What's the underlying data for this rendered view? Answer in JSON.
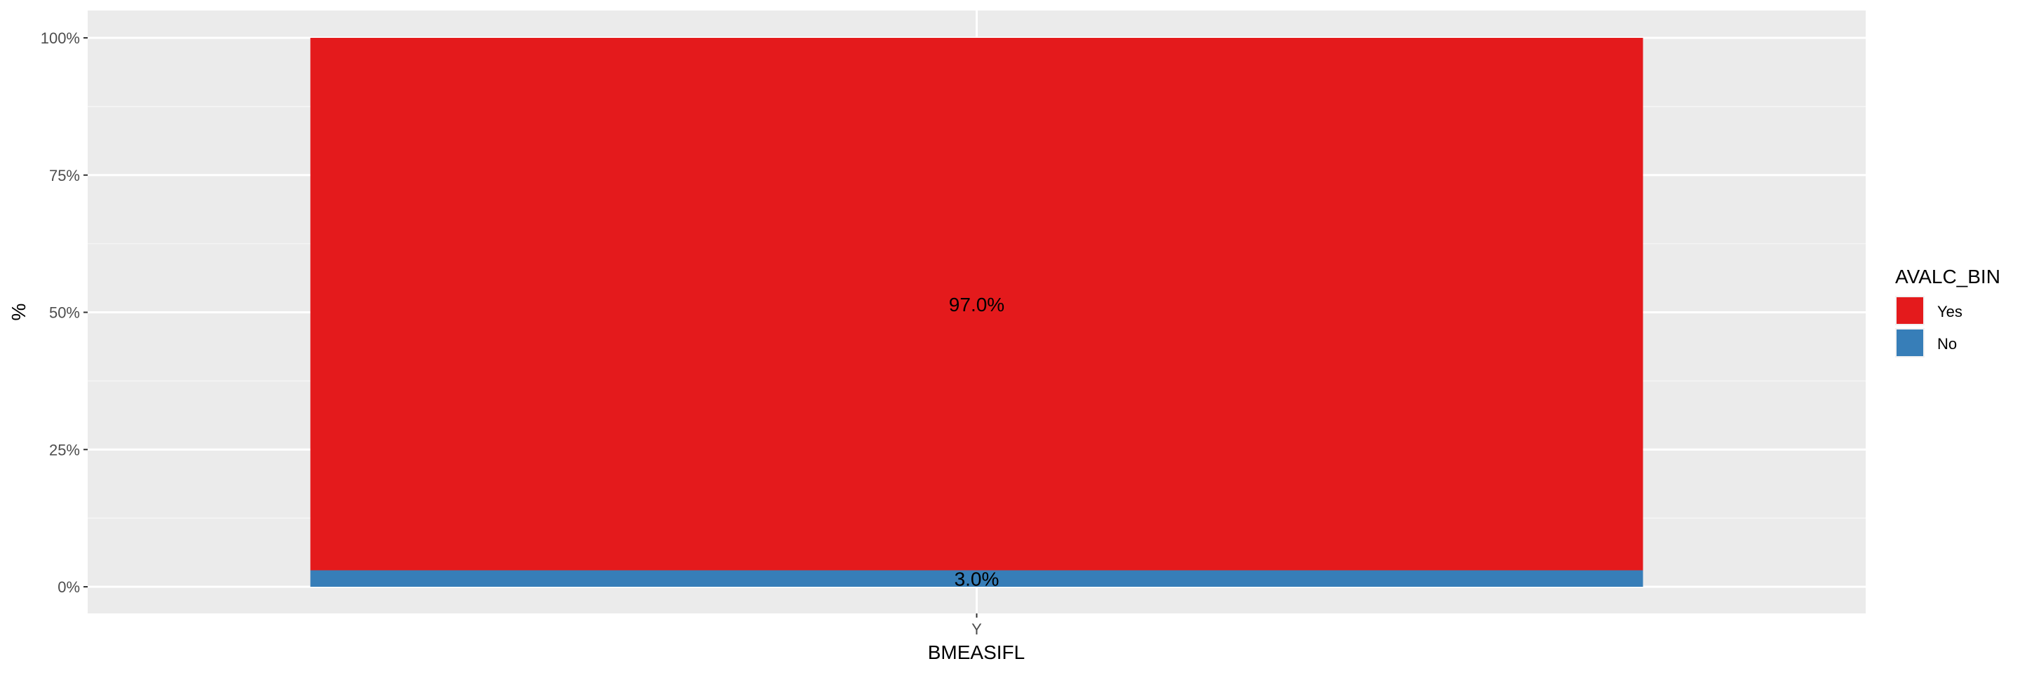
{
  "chart_data": {
    "type": "bar",
    "stacked": true,
    "categories": [
      "Y"
    ],
    "series": [
      {
        "name": "Yes",
        "values": [
          97.0
        ],
        "color": "#E41A1C",
        "label": "97.0%"
      },
      {
        "name": "No",
        "values": [
          3.0
        ],
        "color": "#377EB8",
        "label": "3.0%"
      }
    ],
    "xlabel": "BMEASIFL",
    "ylabel": "%",
    "ylim": [
      0,
      100
    ],
    "yticks": [
      {
        "value": 0,
        "label": "0%"
      },
      {
        "value": 25,
        "label": "25%"
      },
      {
        "value": 50,
        "label": "50%"
      },
      {
        "value": 75,
        "label": "75%"
      },
      {
        "value": 100,
        "label": "100%"
      }
    ],
    "legend": {
      "title": "AVALC_BIN",
      "position": "right"
    },
    "grid": true,
    "panel_background": "#EBEBEB"
  }
}
